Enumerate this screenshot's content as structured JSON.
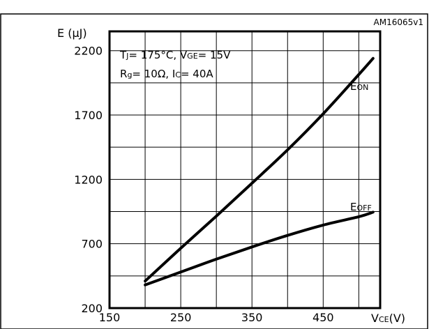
{
  "chart_data": {
    "type": "line",
    "title": "",
    "reference_id": "AM16065v1",
    "ylabel": "E (µJ)",
    "xlabel": {
      "main": "V",
      "sub": "CE",
      "unit": "(V)"
    },
    "xlim": [
      150,
      530
    ],
    "ylim": [
      200,
      2350
    ],
    "x_ticks": [
      150,
      250,
      350,
      450
    ],
    "y_ticks": [
      200,
      700,
      1200,
      1700,
      2200
    ],
    "x_grid": [
      200,
      250,
      300,
      350,
      400,
      450,
      500
    ],
    "y_grid": [
      450,
      700,
      950,
      1200,
      1450,
      1700,
      1950,
      2200
    ],
    "grid": true,
    "conditions": {
      "line1": [
        {
          "t": "T",
          "sub": false
        },
        {
          "t": "J",
          "sub": true
        },
        {
          "t": "= 175°C, V",
          "sub": false
        },
        {
          "t": "GE",
          "sub": true
        },
        {
          "t": "= 15V",
          "sub": false
        }
      ],
      "line2": [
        {
          "t": "R",
          "sub": false
        },
        {
          "t": "g",
          "sub": true
        },
        {
          "t": "= 10Ω, I",
          "sub": false
        },
        {
          "t": "C",
          "sub": true
        },
        {
          "t": "= 40A",
          "sub": false
        }
      ]
    },
    "series": [
      {
        "label": {
          "main": "E",
          "sub": "ON"
        },
        "x": [
          200,
          250,
          300,
          350,
          400,
          450,
          500,
          520
        ],
        "y": [
          410,
          665,
          915,
          1170,
          1430,
          1710,
          2015,
          2140
        ]
      },
      {
        "label": {
          "main": "E",
          "sub": "OFF"
        },
        "x": [
          200,
          250,
          300,
          350,
          400,
          450,
          500,
          520
        ],
        "y": [
          380,
          480,
          580,
          675,
          765,
          845,
          910,
          945
        ]
      }
    ]
  }
}
